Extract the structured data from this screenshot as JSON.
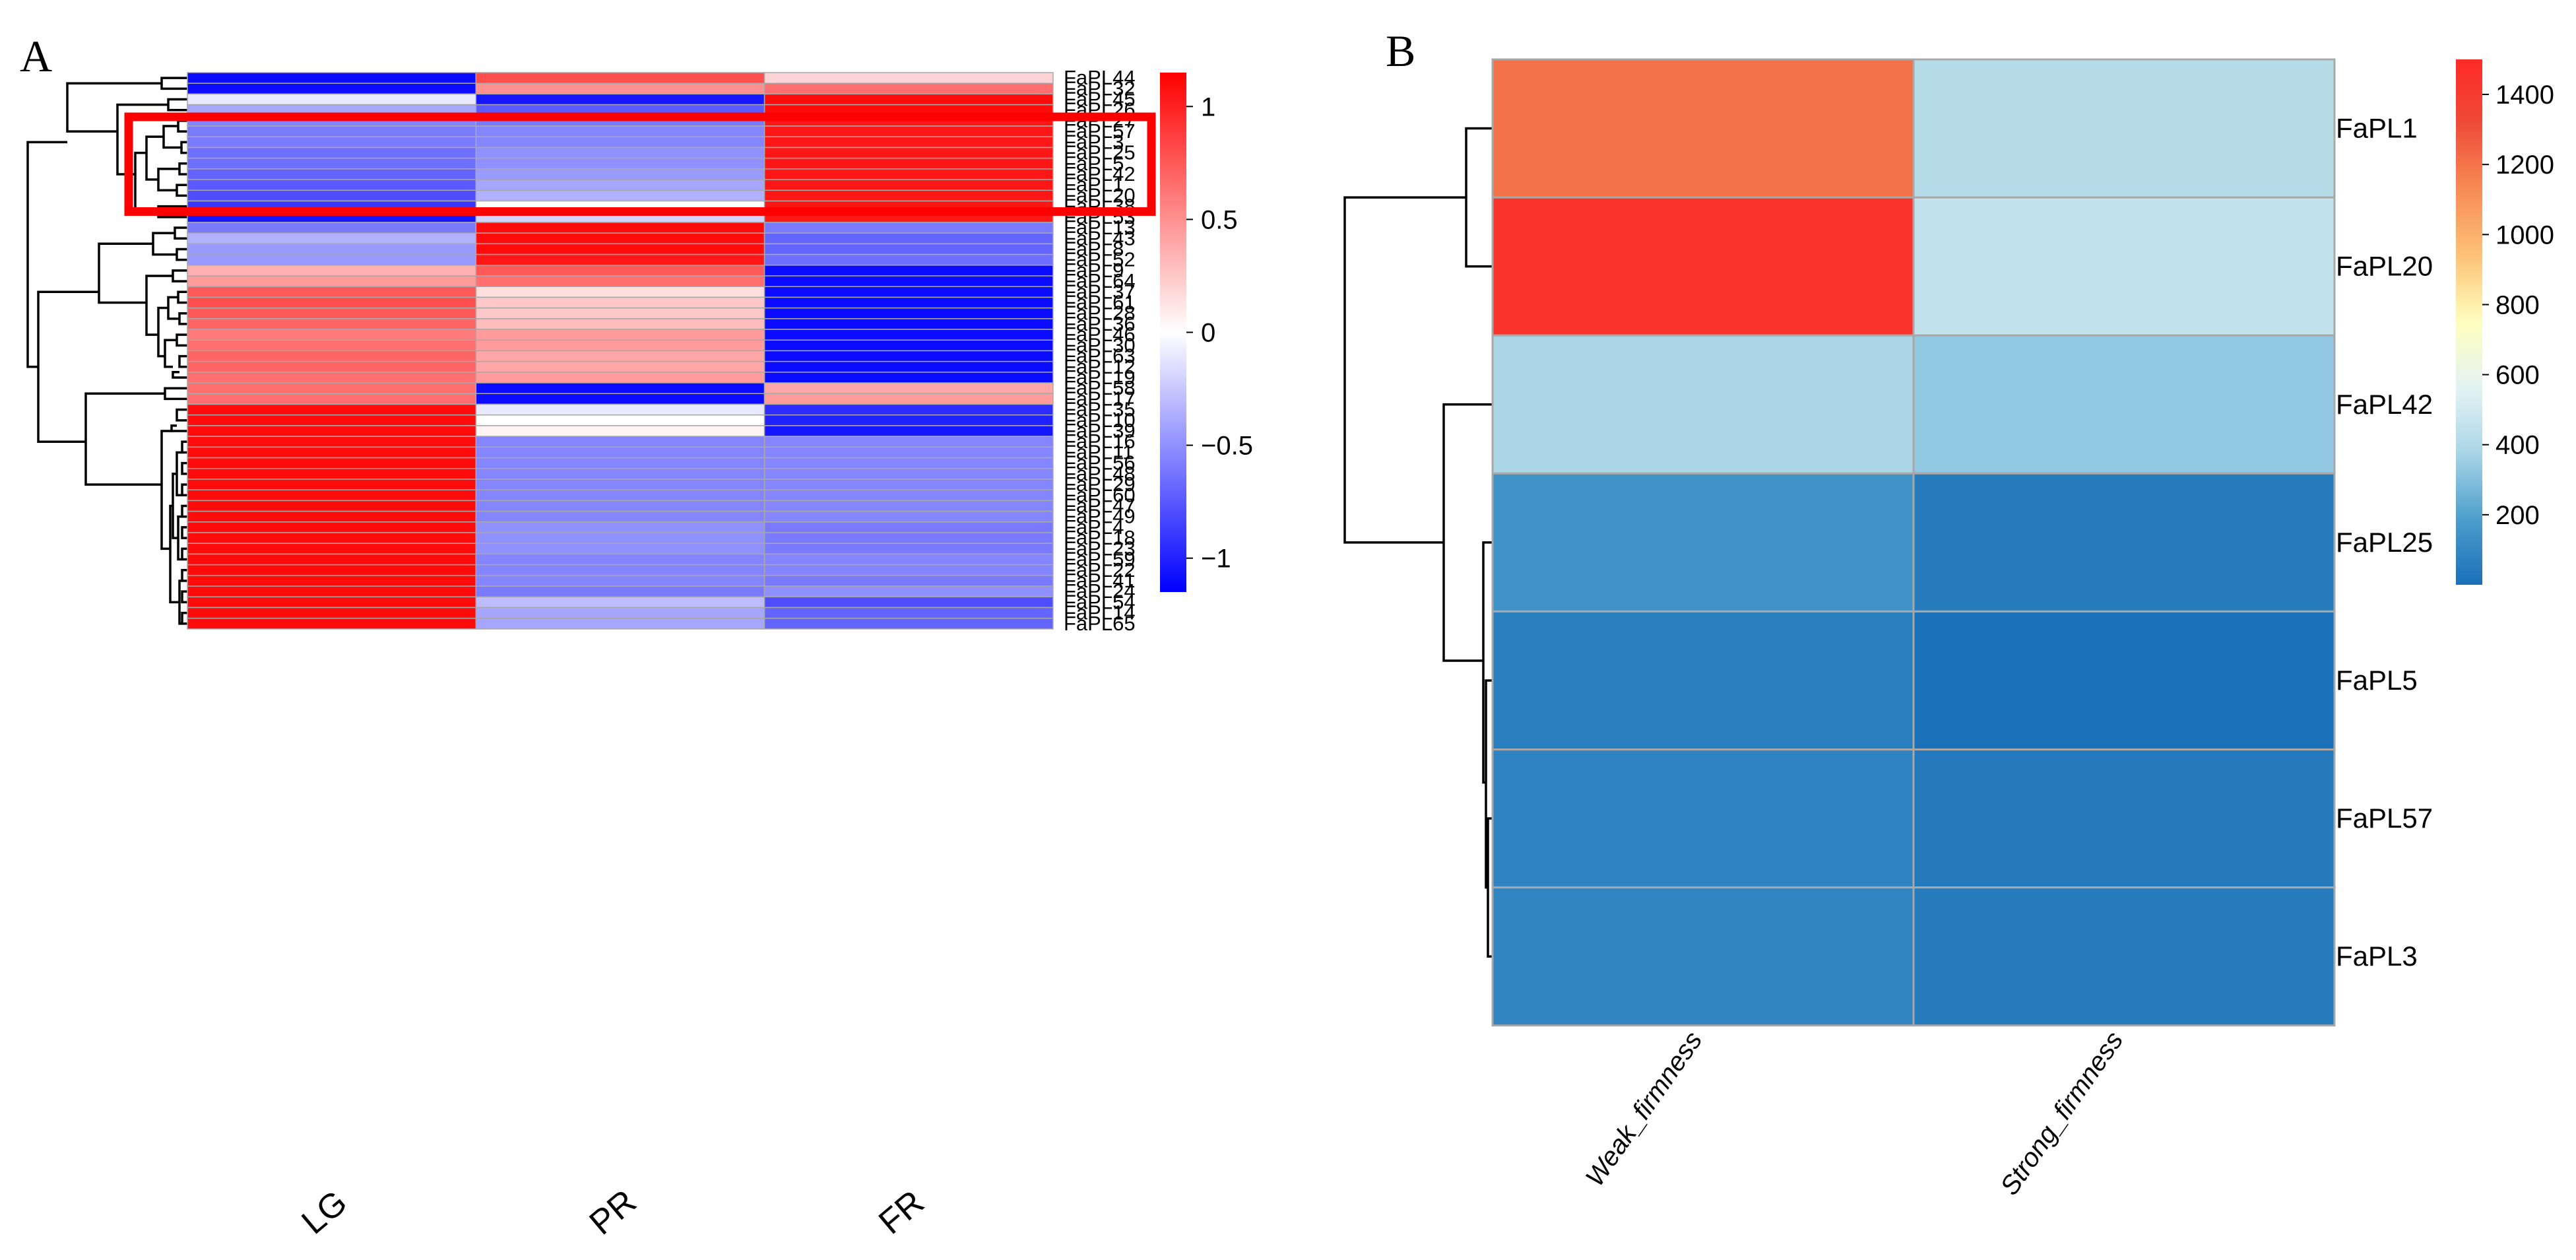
{
  "panels": {
    "a_letter": "A",
    "b_letter": "B"
  },
  "chart_data": [
    {
      "type": "heatmap",
      "panel": "A",
      "columns": [
        "LG",
        "PR",
        "FR"
      ],
      "rows": [
        {
          "name": "FaPL44",
          "values": [
            -1.1,
            0.8,
            0.2
          ]
        },
        {
          "name": "FaPL32",
          "values": [
            -1.1,
            0.5,
            0.65
          ]
        },
        {
          "name": "FaPL45",
          "values": [
            -0.1,
            -1.05,
            1.1
          ]
        },
        {
          "name": "FaPL26",
          "values": [
            -0.4,
            -0.75,
            1.1
          ]
        },
        {
          "name": "FaPL27",
          "values": [
            -0.55,
            -0.6,
            1.05
          ]
        },
        {
          "name": "FaPL57",
          "values": [
            -0.6,
            -0.55,
            1.05
          ]
        },
        {
          "name": "FaPL3",
          "values": [
            -0.6,
            -0.55,
            1.05
          ]
        },
        {
          "name": "FaPL25",
          "values": [
            -0.65,
            -0.5,
            1.05
          ]
        },
        {
          "name": "FaPL5",
          "values": [
            -0.65,
            -0.5,
            1.05
          ]
        },
        {
          "name": "FaPL42",
          "values": [
            -0.7,
            -0.45,
            1.05
          ]
        },
        {
          "name": "FaPL1",
          "values": [
            -0.75,
            -0.4,
            1.05
          ]
        },
        {
          "name": "FaPL20",
          "values": [
            -0.8,
            -0.35,
            1.05
          ]
        },
        {
          "name": "FaPL38",
          "values": [
            -0.9,
            0.0,
            1.05
          ]
        },
        {
          "name": "FaPL53",
          "values": [
            -1.05,
            -0.2,
            1.05
          ]
        },
        {
          "name": "FaPL13",
          "values": [
            -0.6,
            1.1,
            -0.6
          ]
        },
        {
          "name": "FaPL43",
          "values": [
            -0.35,
            1.1,
            -0.7
          ]
        },
        {
          "name": "FaPL8",
          "values": [
            -0.45,
            1.1,
            -0.7
          ]
        },
        {
          "name": "FaPL52",
          "values": [
            -0.45,
            1.05,
            -0.65
          ]
        },
        {
          "name": "FaPL9",
          "values": [
            0.35,
            0.75,
            -1.1
          ]
        },
        {
          "name": "FaPL64",
          "values": [
            0.45,
            0.65,
            -1.1
          ]
        },
        {
          "name": "FaPL37",
          "values": [
            0.75,
            0.15,
            -1.1
          ]
        },
        {
          "name": "FaPL61",
          "values": [
            0.8,
            0.25,
            -1.1
          ]
        },
        {
          "name": "FaPL28",
          "values": [
            0.75,
            0.25,
            -1.1
          ]
        },
        {
          "name": "FaPL36",
          "values": [
            0.7,
            0.3,
            -1.1
          ]
        },
        {
          "name": "FaPL46",
          "values": [
            0.6,
            0.45,
            -1.1
          ]
        },
        {
          "name": "FaPL30",
          "values": [
            0.65,
            0.45,
            -1.1
          ]
        },
        {
          "name": "FaPL63",
          "values": [
            0.7,
            0.4,
            -1.1
          ]
        },
        {
          "name": "FaPL12",
          "values": [
            0.7,
            0.4,
            -1.1
          ]
        },
        {
          "name": "FaPL19",
          "values": [
            0.65,
            0.45,
            -1.1
          ]
        },
        {
          "name": "FaPL58",
          "values": [
            0.65,
            -1.1,
            0.4
          ]
        },
        {
          "name": "FaPL17",
          "values": [
            0.65,
            -1.1,
            0.45
          ]
        },
        {
          "name": "FaPL35",
          "values": [
            1.1,
            -0.1,
            -0.95
          ]
        },
        {
          "name": "FaPL10",
          "values": [
            1.1,
            0.0,
            -1.0
          ]
        },
        {
          "name": "FaPL39",
          "values": [
            1.1,
            0.05,
            -1.05
          ]
        },
        {
          "name": "FaPL16",
          "values": [
            1.1,
            -0.55,
            -0.55
          ]
        },
        {
          "name": "FaPL11",
          "values": [
            1.1,
            -0.55,
            -0.55
          ]
        },
        {
          "name": "FaPL56",
          "values": [
            1.1,
            -0.55,
            -0.55
          ]
        },
        {
          "name": "FaPL48",
          "values": [
            1.1,
            -0.55,
            -0.55
          ]
        },
        {
          "name": "FaPL29",
          "values": [
            1.1,
            -0.55,
            -0.55
          ]
        },
        {
          "name": "FaPL60",
          "values": [
            1.1,
            -0.55,
            -0.55
          ]
        },
        {
          "name": "FaPL47",
          "values": [
            1.1,
            -0.55,
            -0.55
          ]
        },
        {
          "name": "FaPL49",
          "values": [
            1.1,
            -0.55,
            -0.55
          ]
        },
        {
          "name": "FaPL4",
          "values": [
            1.1,
            -0.5,
            -0.6
          ]
        },
        {
          "name": "FaPL18",
          "values": [
            1.1,
            -0.5,
            -0.6
          ]
        },
        {
          "name": "FaPL23",
          "values": [
            1.1,
            -0.5,
            -0.6
          ]
        },
        {
          "name": "FaPL59",
          "values": [
            1.1,
            -0.55,
            -0.55
          ]
        },
        {
          "name": "FaPL22",
          "values": [
            1.1,
            -0.55,
            -0.55
          ]
        },
        {
          "name": "FaPL41",
          "values": [
            1.1,
            -0.55,
            -0.6
          ]
        },
        {
          "name": "FaPL24",
          "values": [
            1.1,
            -0.6,
            -0.5
          ]
        },
        {
          "name": "FaPL54",
          "values": [
            1.1,
            -0.3,
            -0.8
          ]
        },
        {
          "name": "FaPL14",
          "values": [
            1.1,
            -0.4,
            -0.7
          ]
        },
        {
          "name": "FaPL65",
          "values": [
            1.1,
            -0.4,
            -0.7
          ]
        }
      ],
      "highlighted_rows": [
        "FaPL57",
        "FaPL3",
        "FaPL25",
        "FaPL5",
        "FaPL42",
        "FaPL1",
        "FaPL20"
      ],
      "highlight_color": "#ff0000",
      "colorbar": {
        "range": [
          -1.15,
          1.15
        ],
        "ticks": [
          1,
          0.5,
          0,
          -0.5,
          -1
        ],
        "tick_labels": [
          "1",
          "0.5",
          "0",
          "−0.5",
          "−1"
        ],
        "colors": [
          "#0000ff",
          "#ffffff",
          "#ff0000"
        ]
      }
    },
    {
      "type": "heatmap",
      "panel": "B",
      "columns": [
        "Weak_firmness",
        "Strong_firmness"
      ],
      "rows": [
        {
          "name": "FaPL1",
          "values": [
            1200,
            420
          ]
        },
        {
          "name": "FaPL20",
          "values": [
            1450,
            460
          ]
        },
        {
          "name": "FaPL42",
          "values": [
            380,
            330
          ]
        },
        {
          "name": "FaPL25",
          "values": [
            150,
            50
          ]
        },
        {
          "name": "FaPL5",
          "values": [
            60,
            5
          ]
        },
        {
          "name": "FaPL57",
          "values": [
            80,
            40
          ]
        },
        {
          "name": "FaPL3",
          "values": [
            90,
            50
          ]
        }
      ],
      "colorbar": {
        "range": [
          0,
          1500
        ],
        "ticks": [
          1400,
          1200,
          1000,
          800,
          600,
          400,
          200
        ],
        "tick_labels": [
          "1400",
          "1200",
          "1000",
          "800",
          "600",
          "400",
          "200"
        ],
        "colors": [
          "#1a70b8",
          "#4a9ccb",
          "#a8d5e6",
          "#e2f2f4",
          "#ffffbf",
          "#fdc076",
          "#f78d55",
          "#ee4a38",
          "#fe2a27"
        ]
      }
    }
  ]
}
